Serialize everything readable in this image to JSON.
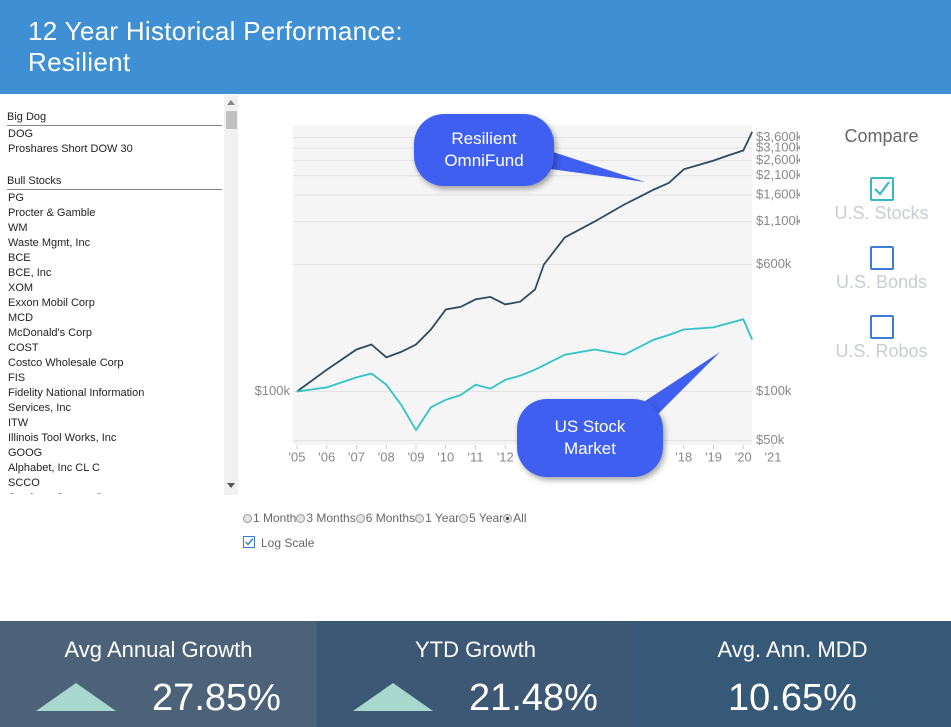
{
  "header": {
    "title": "12 Year Historical Performance: Resilient"
  },
  "sidebar": {
    "groups": [
      {
        "name": "Big Dog",
        "items": [
          "DOG",
          "Proshares Short DOW 30"
        ]
      },
      {
        "name": "Bull Stocks",
        "items": [
          "PG",
          "Procter & Gamble",
          "WM",
          "Waste Mgmt, Inc",
          "BCE",
          "BCE, Inc",
          "XOM",
          "Exxon Mobil Corp",
          "MCD",
          "McDonald's Corp",
          "COST",
          "Costco Wholesale Corp",
          "FIS",
          "Fidelity National Information Services, Inc",
          "ITW",
          "Illinois Tool Works, Inc",
          "GOOG",
          "Alphabet, Inc CL C",
          "SCCO",
          "Southern Copper Corp"
        ]
      }
    ]
  },
  "chart_data": {
    "type": "line",
    "log_scale": true,
    "grid": true,
    "annotations": [
      "Resilient OmniFund",
      "US Stock Market"
    ],
    "x": [
      2005,
      2006,
      2007,
      2007.5,
      2008,
      2008.5,
      2009,
      2009.5,
      2010,
      2010.5,
      2011,
      2011.5,
      2012,
      2012.5,
      2013,
      2013.3,
      2014,
      2015,
      2016,
      2017,
      2017.5,
      2018,
      2019,
      2019.5,
      2020,
      2020.3
    ],
    "series": [
      {
        "name": "Resilient OmniFund",
        "color": "#2c4a63",
        "values": [
          100000,
          136000,
          181000,
          194000,
          162000,
          175000,
          194000,
          240000,
          318000,
          330000,
          367000,
          380000,
          342000,
          355000,
          422000,
          600000,
          880000,
          1100000,
          1400000,
          1730000,
          1900000,
          2300000,
          2600000,
          2800000,
          3000000,
          3900000
        ]
      },
      {
        "name": "US Stock Market",
        "color": "#2ec3c8",
        "values": [
          100000,
          106000,
          122000,
          129000,
          110000,
          83000,
          58000,
          80000,
          89000,
          95000,
          110000,
          104000,
          118000,
          125000,
          136000,
          145000,
          168000,
          181000,
          168000,
          208000,
          222000,
          240000,
          247000,
          262000,
          277000,
          208000
        ]
      }
    ],
    "xlim": [
      2005,
      2021
    ],
    "xticks": [
      {
        "value": 2005,
        "label": "'05"
      },
      {
        "value": 2006,
        "label": "'06"
      },
      {
        "value": 2007,
        "label": "'07"
      },
      {
        "value": 2008,
        "label": "'08"
      },
      {
        "value": 2009,
        "label": "'09"
      },
      {
        "value": 2010,
        "label": "'10"
      },
      {
        "value": 2011,
        "label": "'11"
      },
      {
        "value": 2012,
        "label": "'12"
      },
      {
        "value": 2013,
        "label": "'13"
      },
      {
        "value": 2014,
        "label": "'14"
      },
      {
        "value": 2015,
        "label": "'15"
      },
      {
        "value": 2016,
        "label": "'16"
      },
      {
        "value": 2017,
        "label": "'17"
      },
      {
        "value": 2018,
        "label": "'18"
      },
      {
        "value": 2019,
        "label": "'19"
      },
      {
        "value": 2020,
        "label": "'20"
      },
      {
        "value": 2021,
        "label": "'21"
      }
    ],
    "ylim": [
      47000,
      4300000
    ],
    "yticks": [
      {
        "value": 50000,
        "label": "$50k"
      },
      {
        "value": 100000,
        "label": "$100k"
      },
      {
        "value": 600000,
        "label": "$600k"
      },
      {
        "value": 1100000,
        "label": "$1,100k"
      },
      {
        "value": 1600000,
        "label": "$1,600k"
      },
      {
        "value": 2100000,
        "label": "$2,100k"
      },
      {
        "value": 2600000,
        "label": "$2,600k"
      },
      {
        "value": 3100000,
        "label": "$3,100k"
      },
      {
        "value": 3600000,
        "label": "$3,600k"
      }
    ]
  },
  "compare": {
    "title": "Compare",
    "options": [
      {
        "label": "U.S. Stocks",
        "checked": true
      },
      {
        "label": "U.S. Bonds",
        "checked": false
      },
      {
        "label": "U.S. Robos",
        "checked": false
      }
    ]
  },
  "range": {
    "options": [
      "1 Month",
      "3 Months",
      "6 Months",
      "1 Year",
      "5 Year",
      "All"
    ],
    "selected": 5,
    "log_scale_label": "Log Scale",
    "log_scale_checked": true
  },
  "stats": [
    {
      "label": "Avg Annual Growth",
      "value": "27.85%",
      "up": true
    },
    {
      "label": "YTD Growth",
      "value": "21.48%",
      "up": true
    },
    {
      "label": "Avg. Ann. MDD",
      "value": "10.65%",
      "up": false
    }
  ]
}
